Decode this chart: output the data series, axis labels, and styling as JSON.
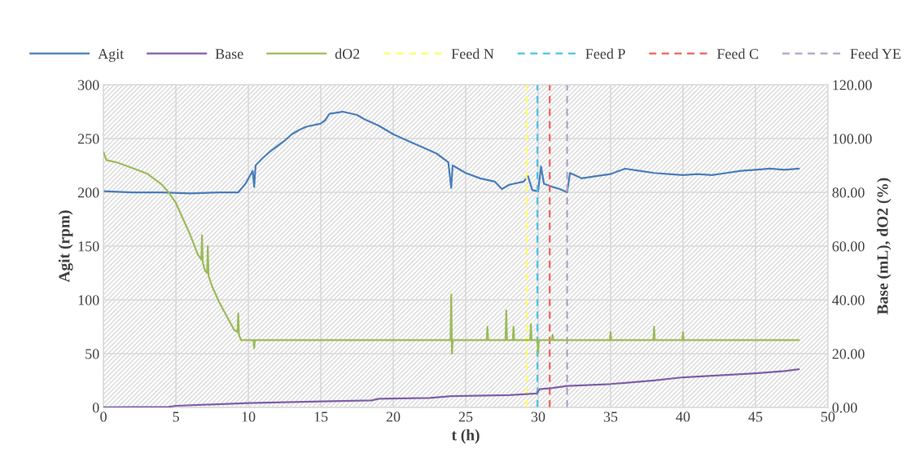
{
  "chart_data": {
    "type": "line",
    "xlabel": "t (h)",
    "ylabel": "Agit (rpm)",
    "y2label": "Base (mL), dO2 (%)",
    "xlim": [
      0,
      50
    ],
    "xticks": [
      0,
      5,
      10,
      15,
      20,
      25,
      30,
      35,
      40,
      45,
      50
    ],
    "ylim": [
      0,
      300
    ],
    "yticks": [
      0,
      50,
      100,
      150,
      200,
      250,
      300
    ],
    "y2lim": [
      0,
      120
    ],
    "y2ticks": [
      {
        "value": 0,
        "label": "0.00"
      },
      {
        "value": 20,
        "label": "20.00"
      },
      {
        "value": 40,
        "label": "40.00"
      },
      {
        "value": 60,
        "label": "60.00"
      },
      {
        "value": 80,
        "label": "80.00"
      },
      {
        "value": 100,
        "label": "100.00"
      },
      {
        "value": 120,
        "label": "120.00"
      }
    ],
    "grid": true,
    "legend": "top",
    "line_style": "solid",
    "marker": "none",
    "series": [
      {
        "name": "Agit",
        "color": "#4a7ebb",
        "x": [
          0,
          2,
          4,
          6,
          8,
          9.3,
          9.8,
          10.3,
          10.4,
          10.5,
          11,
          11.5,
          12,
          12.5,
          13,
          13.5,
          14,
          15,
          15.3,
          15.6,
          16.5,
          17.5,
          18,
          19,
          20,
          21,
          22,
          23,
          23.8,
          24,
          24.1,
          25,
          26,
          27,
          27.5,
          28,
          29,
          29.3,
          29.6,
          30,
          30.2,
          30.4,
          31,
          31.5,
          32,
          32.2,
          33,
          34,
          35,
          36,
          37,
          38,
          39,
          40,
          41,
          42,
          43,
          44,
          45,
          46,
          47,
          48
        ],
        "values": [
          201,
          200,
          200,
          199,
          200,
          200,
          208,
          220,
          205,
          225,
          232,
          238,
          243,
          248,
          254,
          258,
          261,
          264,
          267,
          273,
          275,
          272,
          268,
          262,
          254,
          248,
          242,
          236,
          228,
          204,
          225,
          218,
          213,
          210,
          203,
          207,
          210,
          215,
          202,
          201,
          224,
          208,
          205,
          203,
          200,
          218,
          213,
          215,
          217,
          222,
          220,
          218,
          217,
          216,
          217,
          216,
          218,
          220,
          221,
          222,
          221,
          222
        ]
      },
      {
        "name": "Base",
        "color": "#7f5fa8",
        "axis": "y2",
        "x": [
          0,
          4.5,
          5,
          7,
          10,
          15,
          18.5,
          19,
          22.5,
          24,
          28,
          29.9,
          30.1,
          31,
          32,
          35,
          38,
          40,
          45,
          47,
          48
        ],
        "values": [
          0,
          0.2,
          0.6,
          1,
          1.6,
          2.2,
          2.6,
          3.2,
          3.5,
          4.2,
          4.6,
          5.2,
          6.8,
          7.2,
          8,
          8.7,
          10,
          11.2,
          12.7,
          13.5,
          14.2
        ]
      },
      {
        "name": "dO2",
        "color": "#9bbb59",
        "axis": "y2",
        "x": [
          0,
          0.2,
          1,
          2,
          3,
          4,
          4.5,
          5,
          5.5,
          6,
          6.5,
          6.75,
          6.8,
          6.85,
          7,
          7.15,
          7.2,
          7.25,
          7.5,
          8,
          8.5,
          9,
          9.25,
          9.3,
          9.35,
          9.5,
          10,
          10.35,
          10.4,
          10.45,
          12,
          15,
          20,
          23.95,
          24.0,
          24.05,
          24.1,
          26.45,
          26.5,
          26.55,
          27.75,
          27.8,
          27.85,
          28.25,
          28.3,
          28.35,
          29.45,
          29.5,
          29.55,
          29.95,
          30,
          30.05,
          30.95,
          31,
          31.05,
          34.95,
          35,
          35.05,
          37.95,
          38,
          38.05,
          39.95,
          40,
          40.05,
          45,
          48
        ],
        "values": [
          95,
          92,
          91,
          89,
          87,
          83,
          80,
          76,
          70,
          64,
          57,
          55,
          64,
          54,
          51,
          50,
          60,
          49,
          45,
          39,
          34,
          29,
          28,
          35,
          27,
          25,
          25,
          25,
          22,
          25,
          25,
          25,
          25,
          25,
          42,
          20,
          25,
          25,
          30,
          25,
          25,
          36,
          25,
          25,
          30,
          25,
          25,
          31,
          25,
          25,
          20,
          25,
          25,
          27,
          25,
          25,
          28,
          25,
          25,
          30,
          25,
          25,
          28,
          25,
          25,
          25
        ]
      }
    ],
    "ref_lines": [
      {
        "axis": "x",
        "value": 29.2,
        "label": "Feed N",
        "color": "#ffff66",
        "line_style": "dashed"
      },
      {
        "axis": "x",
        "value": 29.95,
        "label": "Feed P",
        "color": "#4bc4e8",
        "line_style": "dashed"
      },
      {
        "axis": "x",
        "value": 30.8,
        "label": "Feed C",
        "color": "#f0605c",
        "line_style": "dashed"
      },
      {
        "axis": "x",
        "value": 32.0,
        "label": "Feed YE",
        "color": "#b3a2c7",
        "line_style": "dashed"
      }
    ]
  }
}
